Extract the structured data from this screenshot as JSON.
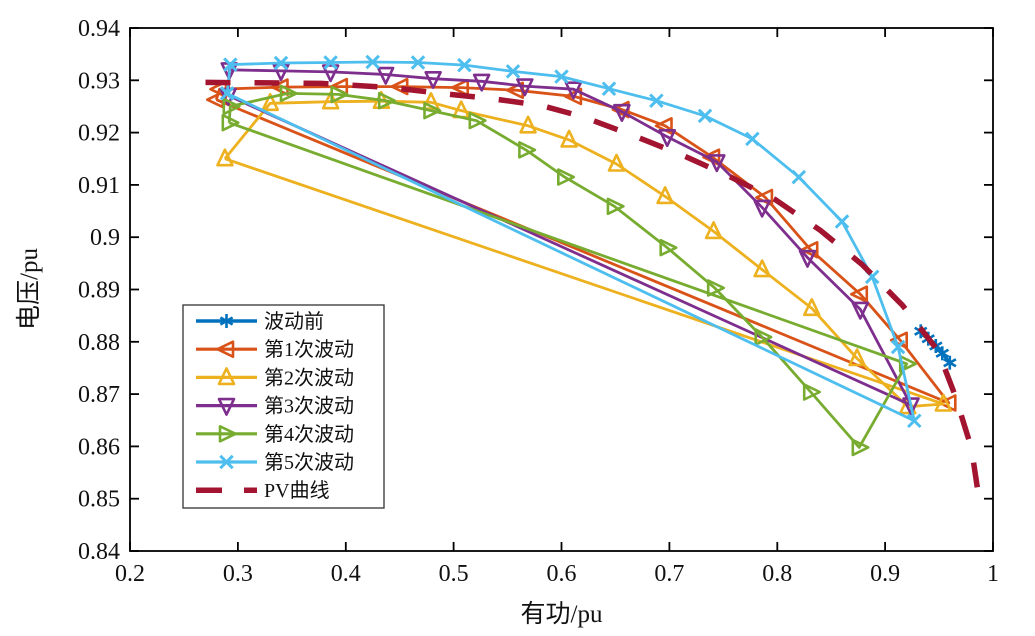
{
  "chart_data": {
    "type": "line",
    "title": "",
    "xlabel": "有功/pu",
    "ylabel": "电压/pu",
    "xlim": [
      0.2,
      1.0
    ],
    "ylim": [
      0.84,
      0.94
    ],
    "grid": false,
    "legend_position": "lower-left",
    "x_ticks": {
      "values": [
        0.2,
        0.3,
        0.4,
        0.5,
        0.6,
        0.7,
        0.8,
        0.9,
        1.0
      ],
      "labels": [
        "0.2",
        "0.3",
        "0.4",
        "0.5",
        "0.6",
        "0.7",
        "0.8",
        "0.9",
        "1"
      ]
    },
    "y_ticks": {
      "values": [
        0.84,
        0.85,
        0.86,
        0.87,
        0.88,
        0.89,
        0.9,
        0.91,
        0.92,
        0.93,
        0.94
      ],
      "labels": [
        "0.84",
        "0.85",
        "0.86",
        "0.87",
        "0.88",
        "0.89",
        "0.9",
        "0.91",
        "0.92",
        "0.93",
        "0.94"
      ]
    },
    "series": [
      {
        "id": "pre-fluctuation",
        "name": "波动前",
        "color": "#0072BD",
        "marker": "asterisk",
        "line_style": "solid",
        "line_width": 3,
        "closed": false,
        "points": [
          [
            0.933,
            0.882
          ],
          [
            0.94,
            0.8806
          ],
          [
            0.947,
            0.8792
          ],
          [
            0.953,
            0.8778
          ],
          [
            0.96,
            0.876
          ]
        ]
      },
      {
        "id": "fluctuation-1",
        "name": "第1次波动",
        "color": "#D95319",
        "marker": "triangle-left",
        "line_style": "solid",
        "line_width": 2.8,
        "closed": true,
        "points": [
          [
            0.28,
            0.9263
          ],
          [
            0.283,
            0.9283
          ],
          [
            0.34,
            0.9287
          ],
          [
            0.395,
            0.9288
          ],
          [
            0.451,
            0.9288
          ],
          [
            0.507,
            0.9286
          ],
          [
            0.558,
            0.9281
          ],
          [
            0.612,
            0.9269
          ],
          [
            0.656,
            0.9244
          ],
          [
            0.696,
            0.9213
          ],
          [
            0.74,
            0.9153
          ],
          [
            0.789,
            0.9076
          ],
          [
            0.831,
            0.8976
          ],
          [
            0.877,
            0.8891
          ],
          [
            0.914,
            0.8803
          ],
          [
            0.959,
            0.8683
          ]
        ]
      },
      {
        "id": "fluctuation-2",
        "name": "第2次波动",
        "color": "#EDB120",
        "marker": "triangle-up",
        "line_style": "solid",
        "line_width": 2.8,
        "closed": true,
        "points": [
          [
            0.288,
            0.915
          ],
          [
            0.33,
            0.9256
          ],
          [
            0.386,
            0.9259
          ],
          [
            0.433,
            0.926
          ],
          [
            0.479,
            0.9258
          ],
          [
            0.507,
            0.9242
          ],
          [
            0.569,
            0.9213
          ],
          [
            0.607,
            0.9186
          ],
          [
            0.651,
            0.914
          ],
          [
            0.696,
            0.9078
          ],
          [
            0.741,
            0.9011
          ],
          [
            0.786,
            0.8938
          ],
          [
            0.832,
            0.8864
          ],
          [
            0.874,
            0.8768
          ],
          [
            0.921,
            0.8676
          ],
          [
            0.954,
            0.8681
          ]
        ]
      },
      {
        "id": "fluctuation-3",
        "name": "第3次波动",
        "color": "#7E2F8E",
        "marker": "triangle-down",
        "line_style": "solid",
        "line_width": 2.8,
        "closed": true,
        "points": [
          [
            0.291,
            0.9271
          ],
          [
            0.292,
            0.932
          ],
          [
            0.34,
            0.9318
          ],
          [
            0.386,
            0.9316
          ],
          [
            0.437,
            0.9311
          ],
          [
            0.481,
            0.9303
          ],
          [
            0.526,
            0.9298
          ],
          [
            0.566,
            0.9289
          ],
          [
            0.611,
            0.9283
          ],
          [
            0.656,
            0.924
          ],
          [
            0.698,
            0.9192
          ],
          [
            0.744,
            0.9144
          ],
          [
            0.786,
            0.9057
          ],
          [
            0.828,
            0.8961
          ],
          [
            0.877,
            0.8862
          ],
          [
            0.924,
            0.8679
          ]
        ]
      },
      {
        "id": "fluctuation-4",
        "name": "第4次波动",
        "color": "#77AC30",
        "marker": "triangle-right",
        "line_style": "solid",
        "line_width": 2.8,
        "closed": true,
        "points": [
          [
            0.292,
            0.9219
          ],
          [
            0.293,
            0.925
          ],
          [
            0.346,
            0.9275
          ],
          [
            0.393,
            0.9273
          ],
          [
            0.437,
            0.9261
          ],
          [
            0.479,
            0.9242
          ],
          [
            0.521,
            0.9223
          ],
          [
            0.567,
            0.9167
          ],
          [
            0.603,
            0.9115
          ],
          [
            0.649,
            0.9059
          ],
          [
            0.698,
            0.898
          ],
          [
            0.742,
            0.8903
          ],
          [
            0.786,
            0.8809
          ],
          [
            0.831,
            0.8704
          ],
          [
            0.876,
            0.8598
          ],
          [
            0.92,
            0.8758
          ]
        ]
      },
      {
        "id": "fluctuation-5",
        "name": "第5次波动",
        "color": "#4DBEEE",
        "marker": "x",
        "line_style": "solid",
        "line_width": 2.8,
        "closed": true,
        "points": [
          [
            0.29,
            0.9275
          ],
          [
            0.293,
            0.933
          ],
          [
            0.34,
            0.9333
          ],
          [
            0.386,
            0.9334
          ],
          [
            0.425,
            0.9335
          ],
          [
            0.467,
            0.9334
          ],
          [
            0.51,
            0.9329
          ],
          [
            0.555,
            0.9317
          ],
          [
            0.6,
            0.9307
          ],
          [
            0.644,
            0.9284
          ],
          [
            0.688,
            0.9261
          ],
          [
            0.733,
            0.9232
          ],
          [
            0.777,
            0.9188
          ],
          [
            0.82,
            0.9115
          ],
          [
            0.86,
            0.903
          ],
          [
            0.888,
            0.8924
          ],
          [
            0.912,
            0.879
          ],
          [
            0.927,
            0.8649
          ]
        ]
      },
      {
        "id": "pv-curve",
        "name": "PV曲线",
        "color": "#A2142F",
        "marker": "none",
        "line_style": "dashed",
        "line_width": 5.5,
        "closed": false,
        "points": [
          [
            0.27,
            0.9296
          ],
          [
            0.33,
            0.9295
          ],
          [
            0.377,
            0.9294
          ],
          [
            0.442,
            0.9286
          ],
          [
            0.488,
            0.9275
          ],
          [
            0.535,
            0.9265
          ],
          [
            0.581,
            0.9252
          ],
          [
            0.62,
            0.923
          ],
          [
            0.667,
            0.9194
          ],
          [
            0.712,
            0.9157
          ],
          [
            0.755,
            0.9117
          ],
          [
            0.798,
            0.9072
          ],
          [
            0.84,
            0.9013
          ],
          [
            0.879,
            0.8947
          ],
          [
            0.916,
            0.887
          ],
          [
            0.949,
            0.8783
          ],
          [
            0.965,
            0.8697
          ],
          [
            0.98,
            0.8597
          ],
          [
            0.986,
            0.8514
          ]
        ]
      }
    ]
  }
}
